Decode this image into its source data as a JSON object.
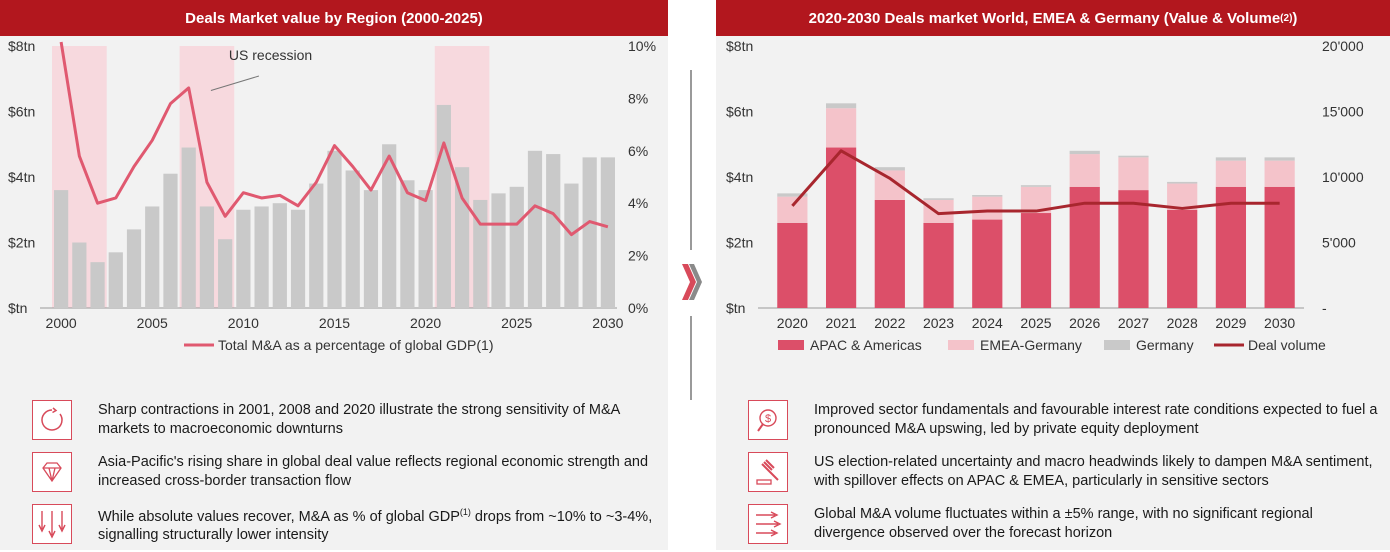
{
  "colors": {
    "header": "#b2171e",
    "bar_grey": "#c9c9c9",
    "line_pink": "#e05970",
    "apac": "#dc4f69",
    "emea": "#f4c3ca",
    "germany": "#c9c9c9",
    "deal_line": "#a8262e",
    "recession": "#f7d9de"
  },
  "left": {
    "title": "Deals Market value by Region (2000-2025)",
    "bullets": [
      {
        "icon": "cycle-icon",
        "text": "Sharp contractions in 2001, 2008 and 2020 illustrate the strong sensitivity of M&A markets to macroeconomic downturns"
      },
      {
        "icon": "diamond-icon",
        "text": "Asia-Pacific's rising share in global deal value reflects regional economic strength and increased cross-border transaction flow"
      },
      {
        "icon": "down-arrows-icon",
        "text_a": "While absolute values recover, M&A as % of global GDP",
        "sup": "(1)",
        "text_b": " drops from ~10% to ~3-4%, signalling structurally lower intensity"
      }
    ]
  },
  "right": {
    "title": "2020-2030 Deals market World, EMEA & Germany (Value & Volume",
    "title_sup": "(2)",
    "title_end": ")",
    "bullets": [
      {
        "icon": "dollar-search-icon",
        "text": "Improved sector fundamentals and favourable interest rate conditions expected to fuel a pronounced M&A upswing, led by private equity deployment"
      },
      {
        "icon": "gavel-icon",
        "text": "US election-related uncertainty and macro headwinds likely to dampen M&A sentiment, with spillover effects on APAC & EMEA, particularly in sensitive sectors"
      },
      {
        "icon": "arrows-right-icon",
        "text": "Global M&A volume fluctuates within a ±5% range, with no significant regional divergence observed over the forecast horizon"
      }
    ]
  },
  "chart_data": [
    {
      "type": "bar",
      "title": "Deals Market value by Region (2000-2025)",
      "years": [
        2000,
        2001,
        2002,
        2003,
        2004,
        2005,
        2006,
        2007,
        2008,
        2009,
        2010,
        2011,
        2012,
        2013,
        2014,
        2015,
        2016,
        2017,
        2018,
        2019,
        2020,
        2021,
        2022,
        2023,
        2024,
        2025,
        2026,
        2027,
        2028,
        2029,
        2030
      ],
      "bar_values": [
        3.6,
        2.0,
        1.4,
        1.7,
        2.4,
        3.1,
        4.1,
        4.9,
        3.1,
        2.1,
        3.0,
        3.1,
        3.2,
        3.0,
        3.8,
        4.8,
        4.2,
        3.6,
        5.0,
        3.9,
        3.6,
        6.2,
        4.3,
        3.3,
        3.5,
        3.7,
        4.8,
        4.7,
        3.8,
        4.6,
        4.6
      ],
      "line_name": "Total M&A as a percentage of global GDP(1)",
      "line_values": [
        10.2,
        5.8,
        4.0,
        4.2,
        5.4,
        6.4,
        7.8,
        8.4,
        4.8,
        3.5,
        4.4,
        4.2,
        4.3,
        3.9,
        4.8,
        6.2,
        5.4,
        4.5,
        5.8,
        4.4,
        4.1,
        6.3,
        4.2,
        3.2,
        3.2,
        3.2,
        3.9,
        3.6,
        2.8,
        3.3,
        3.1
      ],
      "left_axis": [
        "$tn",
        "$2tn",
        "$4tn",
        "$6tn",
        "$8tn"
      ],
      "left_ylim": [
        0,
        8
      ],
      "right_axis": [
        "0%",
        "2%",
        "4%",
        "6%",
        "8%",
        "10%"
      ],
      "right_ylim": [
        0,
        10
      ],
      "x_ticks": [
        "2000",
        "2005",
        "2010",
        "2015",
        "2020",
        "2025",
        "2030"
      ],
      "recessions": [
        [
          2000,
          2002
        ],
        [
          2007,
          2009
        ],
        [
          2021,
          2023
        ]
      ],
      "annotation": "US recession"
    },
    {
      "type": "stacked-bar",
      "title": "2020-2030 Deals market World, EMEA & Germany (Value & Volume(2))",
      "categories": [
        "2020",
        "2021",
        "2022",
        "2023",
        "2024",
        "2025",
        "2026",
        "2027",
        "2028",
        "2029",
        "2030"
      ],
      "series": [
        {
          "name": "APAC & Americas",
          "values": [
            2.6,
            4.9,
            3.3,
            2.6,
            2.7,
            2.9,
            3.7,
            3.6,
            3.0,
            3.7,
            3.7
          ]
        },
        {
          "name": "EMEA-Germany",
          "values": [
            0.8,
            1.2,
            0.9,
            0.7,
            0.7,
            0.8,
            1.0,
            1.0,
            0.8,
            0.8,
            0.8
          ]
        },
        {
          "name": "Germany",
          "values": [
            0.1,
            0.15,
            0.1,
            0.05,
            0.05,
            0.05,
            0.1,
            0.05,
            0.05,
            0.1,
            0.1
          ]
        }
      ],
      "line": {
        "name": "Deal volume",
        "values": [
          7800,
          12000,
          9900,
          7200,
          7400,
          7400,
          8000,
          8000,
          7600,
          8000,
          8000
        ]
      },
      "left_axis": [
        "$tn",
        "$2tn",
        "$4tn",
        "$6tn",
        "$8tn"
      ],
      "left_ylim": [
        0,
        8
      ],
      "right_axis": [
        "-",
        "5'000",
        "10'000",
        "15'000",
        "20'000"
      ],
      "right_ylim": [
        0,
        20000
      ]
    }
  ]
}
